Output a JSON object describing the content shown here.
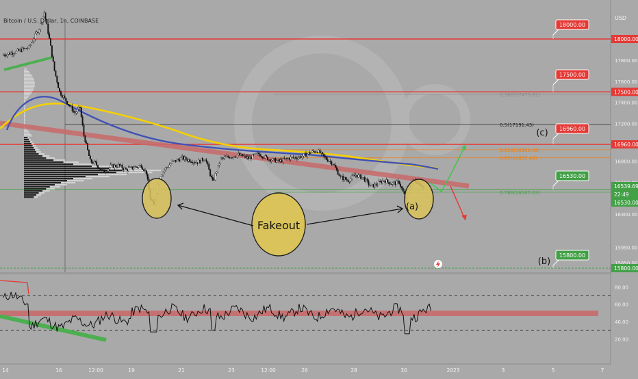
{
  "header": {
    "symbol_title": "Bitcoin / U.S. Dollar, 1h, COINBASE",
    "currency": "USD"
  },
  "chart_data": {
    "type": "line",
    "title": "Bitcoin / U.S. Dollar, 1h, COINBASE",
    "ylim": [
      15750,
      18250
    ],
    "x_ticks": [
      "14",
      "16",
      "12:00",
      "19",
      "21",
      "23",
      "12:00",
      "26",
      "28",
      "30",
      "2023",
      "3",
      "5",
      "7"
    ],
    "price_axis_ticks": [
      "18000.00",
      "17800.00",
      "17600.00",
      "17400.00",
      "17200.00",
      "16800.00",
      "16600.00",
      "16300.00",
      "15990.00",
      "15850.00"
    ],
    "horizontal_levels": [
      {
        "label": "18000.00",
        "value": 18000,
        "color": "#e53935"
      },
      {
        "label": "17500.00",
        "value": 17500,
        "color": "#e53935"
      },
      {
        "label": "16960.00",
        "value": 16960,
        "color": "#e53935"
      },
      {
        "label": "16530.00",
        "value": 16530,
        "color": "#43a047"
      },
      {
        "label": "15800.00",
        "value": 15800,
        "color": "#43a047"
      }
    ],
    "price_tags": [
      {
        "text": "18000.00",
        "color": "#e53935"
      },
      {
        "text": "17500.00",
        "color": "#e53935"
      },
      {
        "text": "16960.00",
        "color": "#e53935"
      },
      {
        "text": "16539.69",
        "color": "#43a047"
      },
      {
        "text": "22:49",
        "color": "#43a047"
      },
      {
        "text": "16530.00",
        "color": "#43a047"
      },
      {
        "text": "15800.00",
        "color": "#43a047"
      }
    ],
    "fibonacci_levels": [
      {
        "label": "0.382(17475.81)",
        "value": 17475.81,
        "color": "#8a8a8a"
      },
      {
        "label": "0.5(17191.43)",
        "value": 17191.43,
        "color": "#222222"
      },
      {
        "label": "0.618(16909.06)",
        "value": 16909.06,
        "color": "#f57c00"
      },
      {
        "label": "0.65(16832.48)",
        "value": 16832.48,
        "color": "#f57c00"
      },
      {
        "label": "0.786(16507.03)",
        "value": 16507.03,
        "color": "#43a047"
      }
    ],
    "price_series": [
      [
        0,
        17850
      ],
      [
        0.5,
        17880
      ],
      [
        1,
        17920
      ],
      [
        1.4,
        18100
      ],
      [
        1.6,
        18250
      ],
      [
        1.8,
        18000
      ],
      [
        2,
        17700
      ],
      [
        2.2,
        17500
      ],
      [
        2.5,
        17400
      ],
      [
        2.8,
        17300
      ],
      [
        3,
        17350
      ],
      [
        3.2,
        17000
      ],
      [
        3.4,
        16800
      ],
      [
        3.6,
        16780
      ],
      [
        3.9,
        16700
      ],
      [
        4.2,
        16750
      ],
      [
        4.5,
        16760
      ],
      [
        4.8,
        16720
      ],
      [
        5.1,
        16740
      ],
      [
        5.4,
        16760
      ],
      [
        5.6,
        16690
      ],
      [
        5.75,
        16450
      ],
      [
        5.9,
        16380
      ],
      [
        6.1,
        16650
      ],
      [
        6.3,
        16720
      ],
      [
        6.6,
        16790
      ],
      [
        7,
        16830
      ],
      [
        7.3,
        16810
      ],
      [
        7.6,
        16790
      ],
      [
        7.9,
        16830
      ],
      [
        8.2,
        16600
      ],
      [
        8.5,
        16820
      ],
      [
        8.8,
        16840
      ],
      [
        9.2,
        16860
      ],
      [
        9.6,
        16830
      ],
      [
        10,
        16870
      ],
      [
        10.4,
        16820
      ],
      [
        10.8,
        16800
      ],
      [
        11.2,
        16830
      ],
      [
        11.6,
        16840
      ],
      [
        12,
        16880
      ],
      [
        12.3,
        16900
      ],
      [
        12.6,
        16830
      ],
      [
        12.9,
        16780
      ],
      [
        13.2,
        16650
      ],
      [
        13.5,
        16620
      ],
      [
        13.8,
        16670
      ],
      [
        14.1,
        16640
      ],
      [
        14.4,
        16560
      ],
      [
        14.6,
        16580
      ],
      [
        14.9,
        16620
      ],
      [
        15.2,
        16590
      ],
      [
        15.5,
        16600
      ],
      [
        15.75,
        16450
      ],
      [
        15.9,
        16560
      ],
      [
        16.1,
        16620
      ],
      [
        16.3,
        16590
      ],
      [
        16.5,
        16550
      ]
    ],
    "rsi_levels": {
      "upper": 70,
      "lower": 30
    },
    "rsi_ticks": [
      "80.00",
      "60.00",
      "40.00",
      "20.00"
    ],
    "annotations": [
      "(c)",
      "(a)",
      "(b)",
      "Fakeout"
    ]
  }
}
